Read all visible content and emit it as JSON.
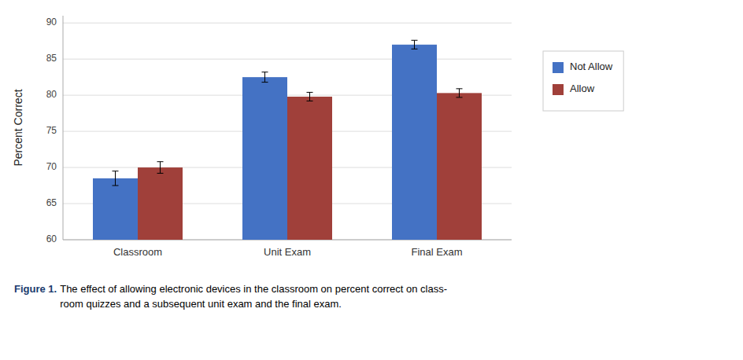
{
  "chart_data": {
    "type": "bar",
    "categories": [
      "Classroom",
      "Unit Exam",
      "Final Exam"
    ],
    "series": [
      {
        "name": "Not Allow",
        "color": "#4472C4",
        "values": [
          68.5,
          82.5,
          87.0
        ],
        "errors": [
          1.0,
          0.7,
          0.6
        ]
      },
      {
        "name": "Allow",
        "color": "#A0403A",
        "values": [
          70.0,
          79.8,
          80.3
        ],
        "errors": [
          0.8,
          0.6,
          0.6
        ]
      }
    ],
    "ylabel": "Percent Correct",
    "ylim": [
      60,
      91
    ],
    "yticks": [
      60,
      65,
      70,
      75,
      80,
      85,
      90
    ],
    "grid": true,
    "legend": "right",
    "annotations": [
      "Figure 1.",
      " The effect of allowing electronic devices in the classroom on percent correct on class-\nroom quizzes and a subsequent unit exam and the final exam."
    ]
  }
}
